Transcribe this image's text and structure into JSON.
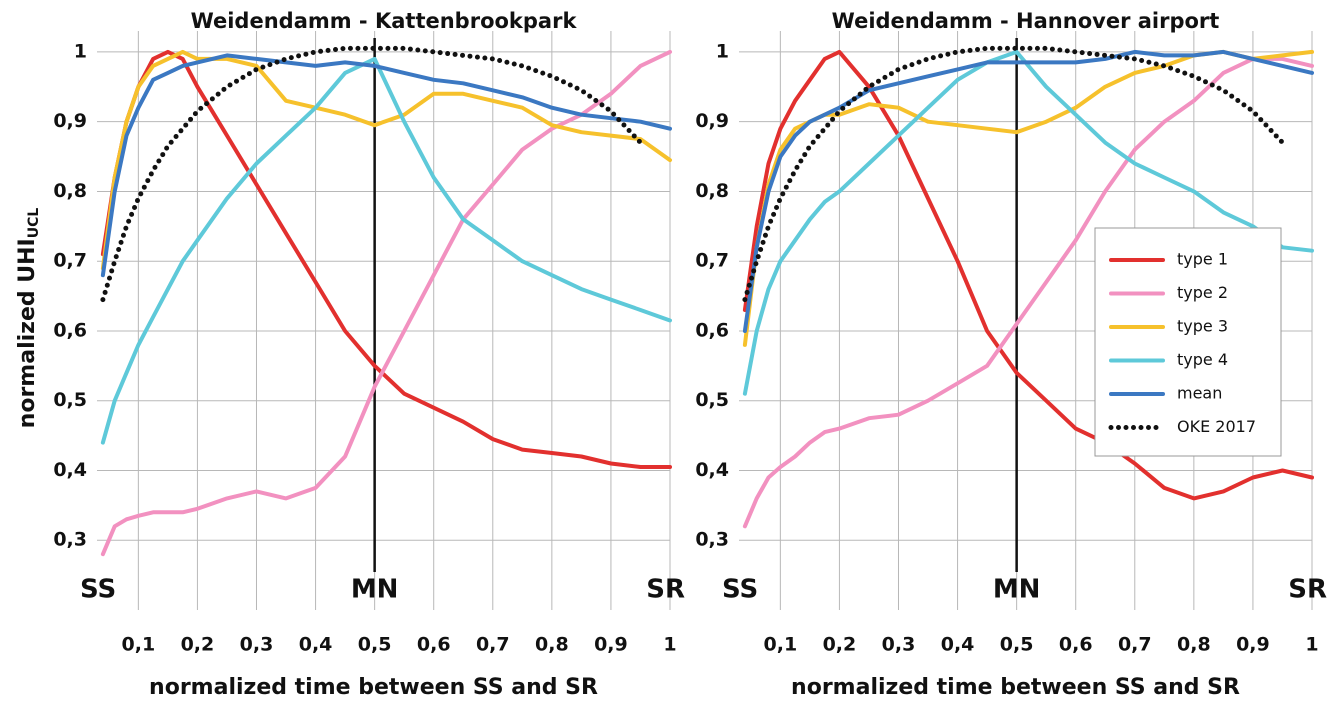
{
  "chart_data": [
    {
      "type": "line",
      "title": "Weidendamm - Kattenbrookpark",
      "xlabel": "normalized time between SS and SR",
      "ylabel": "normalized UHI",
      "ylabel_sub": "UCL",
      "annotations": [
        "SS",
        "MN",
        "SR"
      ],
      "vline": 0.5,
      "grid": true,
      "legend": false,
      "xlim": [
        0.03,
        1
      ],
      "ylim": [
        0.2,
        1.03
      ],
      "xticks": [
        {
          "value": 0.1,
          "label": "0,1"
        },
        {
          "value": 0.2,
          "label": "0,2"
        },
        {
          "value": 0.3,
          "label": "0,3"
        },
        {
          "value": 0.4,
          "label": "0,4"
        },
        {
          "value": 0.5,
          "label": "0,5"
        },
        {
          "value": 0.6,
          "label": "0,6"
        },
        {
          "value": 0.7,
          "label": "0,7"
        },
        {
          "value": 0.8,
          "label": "0,8"
        },
        {
          "value": 0.9,
          "label": "0,9"
        },
        1
      ],
      "yticks": [
        {
          "value": 0.3,
          "label": "0,3"
        },
        {
          "value": 0.4,
          "label": "0,4"
        },
        {
          "value": 0.5,
          "label": "0,5"
        },
        {
          "value": 0.6,
          "label": "0,6"
        },
        {
          "value": 0.7,
          "label": "0,7"
        },
        {
          "value": 0.8,
          "label": "0,8"
        },
        {
          "value": 0.9,
          "label": "0,9"
        },
        1
      ],
      "x": [
        0.04,
        0.06,
        0.08,
        0.1,
        0.125,
        0.15,
        0.175,
        0.2,
        0.25,
        0.3,
        0.35,
        0.4,
        0.45,
        0.5,
        0.55,
        0.6,
        0.65,
        0.7,
        0.75,
        0.8,
        0.85,
        0.9,
        0.95,
        1
      ],
      "series": [
        {
          "color": "#e2302e",
          "values": [
            0.71,
            0.82,
            0.9,
            0.95,
            0.99,
            1.0,
            0.99,
            0.95,
            0.88,
            0.81,
            0.74,
            0.67,
            0.6,
            0.55,
            0.51,
            0.49,
            0.47,
            0.445,
            0.43,
            0.425,
            0.42,
            0.41,
            0.405,
            0.405
          ]
        },
        {
          "color": "#f291c0",
          "values": [
            0.28,
            0.32,
            0.33,
            0.335,
            0.34,
            0.34,
            0.34,
            0.345,
            0.36,
            0.37,
            0.36,
            0.375,
            0.42,
            0.52,
            0.6,
            0.68,
            0.76,
            0.81,
            0.86,
            0.89,
            0.91,
            0.94,
            0.98,
            1.0
          ]
        },
        {
          "color": "#f6c12c",
          "values": [
            0.69,
            0.82,
            0.9,
            0.95,
            0.98,
            0.99,
            1.0,
            0.99,
            0.99,
            0.98,
            0.93,
            0.92,
            0.91,
            0.895,
            0.91,
            0.94,
            0.94,
            0.93,
            0.92,
            0.895,
            0.885,
            0.88,
            0.875,
            0.845
          ]
        },
        {
          "color": "#5ec9d9",
          "values": [
            0.44,
            0.5,
            0.54,
            0.58,
            0.62,
            0.66,
            0.7,
            0.73,
            0.79,
            0.84,
            0.88,
            0.92,
            0.97,
            0.99,
            0.9,
            0.82,
            0.76,
            0.73,
            0.7,
            0.68,
            0.66,
            0.645,
            0.63,
            0.615
          ]
        },
        {
          "color": "#3b78c2",
          "values": [
            0.68,
            0.8,
            0.88,
            0.92,
            0.96,
            0.97,
            0.98,
            0.985,
            0.995,
            0.99,
            0.985,
            0.98,
            0.985,
            0.98,
            0.97,
            0.96,
            0.955,
            0.945,
            0.935,
            0.92,
            0.91,
            0.905,
            0.9,
            0.89
          ]
        },
        {
          "color": "#111111",
          "style": "dotted",
          "values": [
            0.645,
            0.7,
            0.75,
            0.79,
            0.83,
            0.865,
            0.89,
            0.915,
            0.95,
            0.975,
            0.99,
            1.0,
            1.005,
            1.005,
            1.005,
            1.0,
            0.995,
            0.99,
            0.98,
            0.965,
            0.945,
            0.915,
            0.87,
            null
          ]
        }
      ]
    },
    {
      "type": "line",
      "title": "Weidendamm - Hannover airport",
      "xlabel": "normalized time between SS and SR",
      "annotations": [
        "SS",
        "MN",
        "SR"
      ],
      "vline": 0.5,
      "grid": true,
      "legend": "right",
      "xlim": [
        0.03,
        1
      ],
      "ylim": [
        0.2,
        1.03
      ],
      "xticks": [
        {
          "value": 0.1,
          "label": "0,1"
        },
        {
          "value": 0.2,
          "label": "0,2"
        },
        {
          "value": 0.3,
          "label": "0,3"
        },
        {
          "value": 0.4,
          "label": "0,4"
        },
        {
          "value": 0.5,
          "label": "0,5"
        },
        {
          "value": 0.6,
          "label": "0,6"
        },
        {
          "value": 0.7,
          "label": "0,7"
        },
        {
          "value": 0.8,
          "label": "0,8"
        },
        {
          "value": 0.9,
          "label": "0,9"
        },
        1
      ],
      "yticks": [
        {
          "value": 0.3,
          "label": "0,3"
        },
        {
          "value": 0.4,
          "label": "0,4"
        },
        {
          "value": 0.5,
          "label": "0,5"
        },
        {
          "value": 0.6,
          "label": "0,6"
        },
        {
          "value": 0.7,
          "label": "0,7"
        },
        {
          "value": 0.8,
          "label": "0,8"
        },
        {
          "value": 0.9,
          "label": "0,9"
        },
        1
      ],
      "x": [
        0.04,
        0.06,
        0.08,
        0.1,
        0.125,
        0.15,
        0.175,
        0.2,
        0.25,
        0.3,
        0.35,
        0.4,
        0.45,
        0.5,
        0.55,
        0.6,
        0.65,
        0.7,
        0.75,
        0.8,
        0.85,
        0.9,
        0.95,
        1
      ],
      "series": [
        {
          "name": "type 1",
          "color": "#e2302e",
          "values": [
            0.63,
            0.75,
            0.84,
            0.89,
            0.93,
            0.96,
            0.99,
            1.0,
            0.95,
            0.88,
            0.79,
            0.7,
            0.6,
            0.54,
            0.5,
            0.46,
            0.44,
            0.41,
            0.375,
            0.36,
            0.37,
            0.39,
            0.4,
            0.39
          ]
        },
        {
          "name": "type 2",
          "color": "#f291c0",
          "values": [
            0.32,
            0.36,
            0.39,
            0.405,
            0.42,
            0.44,
            0.455,
            0.46,
            0.475,
            0.48,
            0.5,
            0.525,
            0.55,
            0.61,
            0.67,
            0.73,
            0.8,
            0.86,
            0.9,
            0.93,
            0.97,
            0.99,
            0.99,
            0.98
          ]
        },
        {
          "name": "type 3",
          "color": "#f6c12c",
          "values": [
            0.58,
            0.72,
            0.81,
            0.86,
            0.89,
            0.9,
            0.91,
            0.91,
            0.925,
            0.92,
            0.9,
            0.895,
            0.89,
            0.885,
            0.9,
            0.92,
            0.95,
            0.97,
            0.98,
            0.995,
            1.0,
            0.99,
            0.995,
            1.0
          ]
        },
        {
          "name": "type 4",
          "color": "#5ec9d9",
          "values": [
            0.51,
            0.6,
            0.66,
            0.7,
            0.73,
            0.76,
            0.785,
            0.8,
            0.84,
            0.88,
            0.92,
            0.96,
            0.985,
            1.0,
            0.95,
            0.91,
            0.87,
            0.84,
            0.82,
            0.8,
            0.77,
            0.75,
            0.72,
            0.715
          ]
        },
        {
          "name": "mean",
          "color": "#3b78c2",
          "values": [
            0.6,
            0.72,
            0.8,
            0.85,
            0.88,
            0.9,
            0.91,
            0.92,
            0.945,
            0.955,
            0.965,
            0.975,
            0.985,
            0.985,
            0.985,
            0.985,
            0.99,
            1.0,
            0.995,
            0.995,
            1.0,
            0.99,
            0.98,
            0.97
          ]
        },
        {
          "name": "OKE 2017",
          "color": "#111111",
          "style": "dotted",
          "values": [
            0.645,
            0.7,
            0.75,
            0.79,
            0.83,
            0.865,
            0.89,
            0.915,
            0.95,
            0.975,
            0.99,
            1.0,
            1.005,
            1.005,
            1.005,
            1.0,
            0.995,
            0.99,
            0.98,
            0.965,
            0.945,
            0.915,
            0.87,
            null
          ]
        }
      ]
    }
  ]
}
